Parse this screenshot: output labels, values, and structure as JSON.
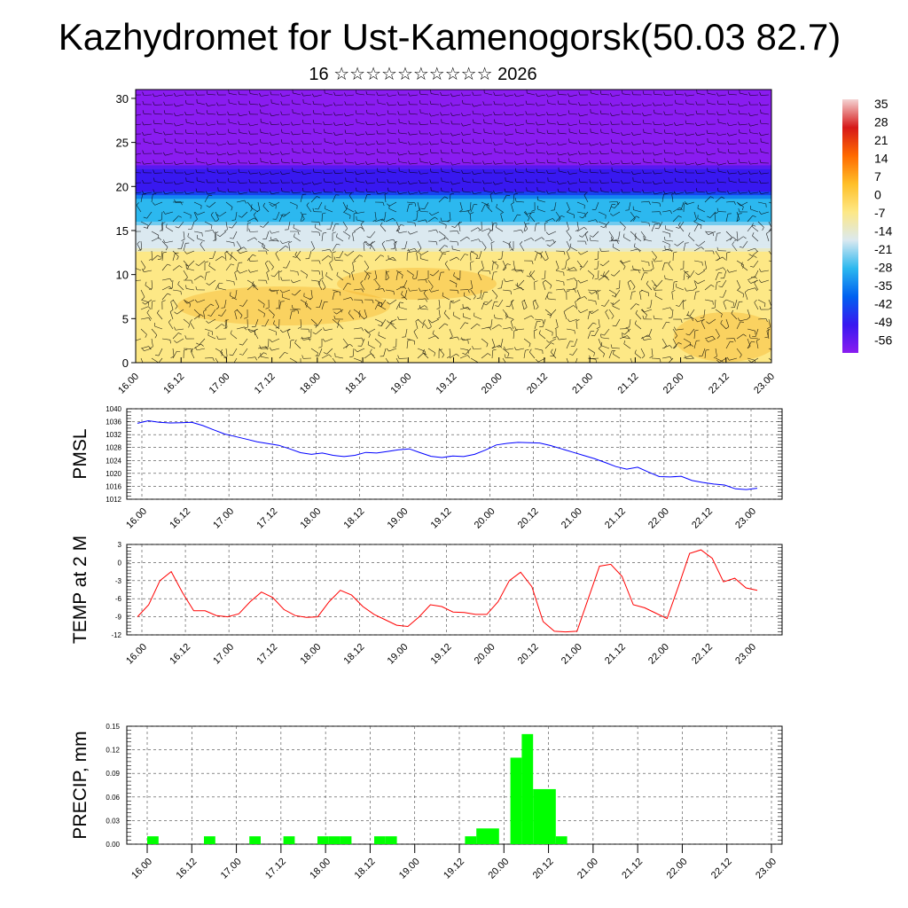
{
  "title": "Kazhydromet for Ust-Kamenogorsk(50.03 82.7)",
  "subtitle": "16 ☆☆☆☆☆☆☆☆☆☆ 2026",
  "chart_data": [
    {
      "type": "heatmap",
      "title": "Kazhydromet for Ust-Kamenogorsk(50.03 82.7)",
      "subtitle": "16 ☆☆☆☆☆☆☆☆☆☆ 2026",
      "x_ticks": [
        "16.00",
        "16.12",
        "17.00",
        "17.12",
        "18.00",
        "18.12",
        "19.00",
        "19.12",
        "20.00",
        "20.12",
        "21.00",
        "21.12",
        "22.00",
        "22.12",
        "23.00"
      ],
      "y_ticks": [
        "0",
        "5",
        "10",
        "15",
        "20",
        "25",
        "30"
      ],
      "ylim": [
        0,
        31
      ],
      "colorbar_labels": [
        "35",
        "28",
        "21",
        "14",
        "7",
        "0",
        "-7",
        "-14",
        "-21",
        "-28",
        "-35",
        "-42",
        "-49",
        "-56"
      ],
      "colorbar_colors": [
        "#f4d4d4",
        "#d61818",
        "#ff6a00",
        "#ffbf28",
        "#fde886",
        "#dbe9f0",
        "#2cb8ef",
        "#0060f0",
        "#3818f0",
        "#8a1cf0"
      ],
      "colorbar_range": [
        -63,
        42
      ],
      "layers": [
        {
          "level_from": 0,
          "level_to": 13,
          "value": -8,
          "label": "-7"
        },
        {
          "level_from": 13,
          "level_to": 16,
          "value": -18,
          "label": "-21"
        },
        {
          "level_from": 16,
          "level_to": 19,
          "value": -32,
          "label": "-35"
        },
        {
          "level_from": 19,
          "level_to": 22,
          "value": -50,
          "label": "-49"
        },
        {
          "level_from": 22,
          "level_to": 31,
          "value": -60,
          "label": "-56"
        }
      ]
    },
    {
      "type": "line",
      "ylabel": "PMSL",
      "ylim": [
        1012,
        1040
      ],
      "yticks": [
        "1012",
        "1016",
        "1020",
        "1024",
        "1028",
        "1032",
        "1036",
        "1040"
      ],
      "x_ticks": [
        "16.00",
        "16.12",
        "17.00",
        "17.12",
        "18.00",
        "18.12",
        "19.00",
        "19.12",
        "20.00",
        "20.12",
        "21.00",
        "21.12",
        "22.00",
        "22.12",
        "23.00"
      ],
      "color": "#0000ff",
      "values": [
        1035.5,
        1036.3,
        1035.8,
        1035.6,
        1035.7,
        1035.8,
        1034.8,
        1033.5,
        1032.2,
        1031.4,
        1030.6,
        1029.8,
        1029.2,
        1028.7,
        1027.6,
        1026.4,
        1025.9,
        1026.3,
        1025.6,
        1025.2,
        1025.6,
        1026.5,
        1026.3,
        1026.8,
        1027.3,
        1027.6,
        1026.4,
        1025.3,
        1024.9,
        1025.4,
        1025.2,
        1025.9,
        1027.2,
        1028.8,
        1029.3,
        1029.6,
        1029.5,
        1029.4,
        1028.6,
        1027.6,
        1026.6,
        1025.6,
        1024.6,
        1023.4,
        1022.1,
        1021.3,
        1021.9,
        1020.4,
        1019.0,
        1018.9,
        1019.1,
        1017.8,
        1017.2,
        1016.7,
        1016.4,
        1015.2,
        1015.0,
        1015.4
      ]
    },
    {
      "type": "line",
      "ylabel": "TEMP at 2 M",
      "ylim": [
        -12,
        3
      ],
      "yticks": [
        "-12",
        "-9",
        "-6",
        "-3",
        "0",
        "3"
      ],
      "x_ticks": [
        "16.00",
        "16.12",
        "17.00",
        "17.12",
        "18.00",
        "18.12",
        "19.00",
        "19.12",
        "20.00",
        "20.12",
        "21.00",
        "21.12",
        "22.00",
        "22.12",
        "23.00"
      ],
      "color": "#ff0000",
      "values": [
        -9,
        -7,
        -3,
        -1.5,
        -5,
        -8,
        -8,
        -8.8,
        -9,
        -8.5,
        -6.5,
        -4.9,
        -5.8,
        -7.8,
        -8.8,
        -9.1,
        -9,
        -6.5,
        -4.6,
        -5.4,
        -7.3,
        -8.6,
        -9.5,
        -10.4,
        -10.6,
        -9,
        -7,
        -7.3,
        -8.2,
        -8.3,
        -8.6,
        -8.6,
        -6.5,
        -3,
        -1.6,
        -4,
        -9.8,
        -11.4,
        -11.5,
        -11.4,
        -6,
        -0.6,
        -0.3,
        -2.3,
        -7,
        -7.5,
        -8.4,
        -9.3,
        -4,
        1.5,
        2.1,
        0.7,
        -3.2,
        -2.6,
        -4.2,
        -4.6
      ]
    },
    {
      "type": "bar",
      "ylabel": "PRECIP, mm",
      "ylim": [
        0,
        0.15
      ],
      "yticks": [
        "0.00",
        "0.03",
        "0.06",
        "0.09",
        "0.12",
        "0.15"
      ],
      "x_ticks": [
        "16.00",
        "16.12",
        "17.00",
        "17.12",
        "18.00",
        "18.12",
        "19.00",
        "19.12",
        "20.00",
        "20.12",
        "21.00",
        "21.12",
        "22.00",
        "22.12",
        "23.00"
      ],
      "color": "#00ff00",
      "values": [
        0.01,
        0,
        0,
        0,
        0,
        0.01,
        0,
        0,
        0,
        0.01,
        0,
        0,
        0.01,
        0,
        0,
        0.01,
        0.01,
        0.01,
        0,
        0,
        0.01,
        0.01,
        0,
        0,
        0,
        0,
        0,
        0,
        0.01,
        0.02,
        0.02,
        0,
        0.11,
        0.14,
        0.07,
        0.07,
        0.01,
        0,
        0,
        0,
        0,
        0,
        0,
        0,
        0,
        0,
        0,
        0,
        0,
        0,
        0,
        0,
        0,
        0,
        0,
        0
      ]
    }
  ]
}
